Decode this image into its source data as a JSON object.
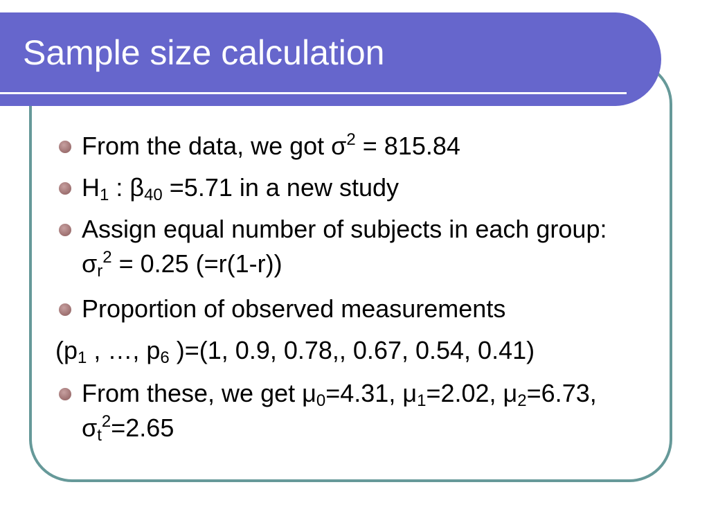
{
  "title": "Sample size calculation",
  "items": [
    [
      "From the data, we got σ",
      "2",
      " = 815.84"
    ],
    [
      "H",
      "1",
      " : β",
      "40",
      " =5.71 in a new study"
    ],
    [
      "Assign equal number of subjects in each group: σ",
      "r",
      "2",
      " = 0.25 (=r(1-r))"
    ],
    [
      "Proportion of observed measurements"
    ],
    [
      "(p",
      "1",
      " , …, p",
      "6",
      " )=(1, 0.9, 0.78,, 0.67, 0.54, 0.41)"
    ],
    [
      "From these, we get μ",
      "0",
      "=4.31, μ",
      "1",
      "=2.02, μ",
      "2",
      "=6.73, σ",
      "t",
      "2",
      "=2.65"
    ]
  ]
}
